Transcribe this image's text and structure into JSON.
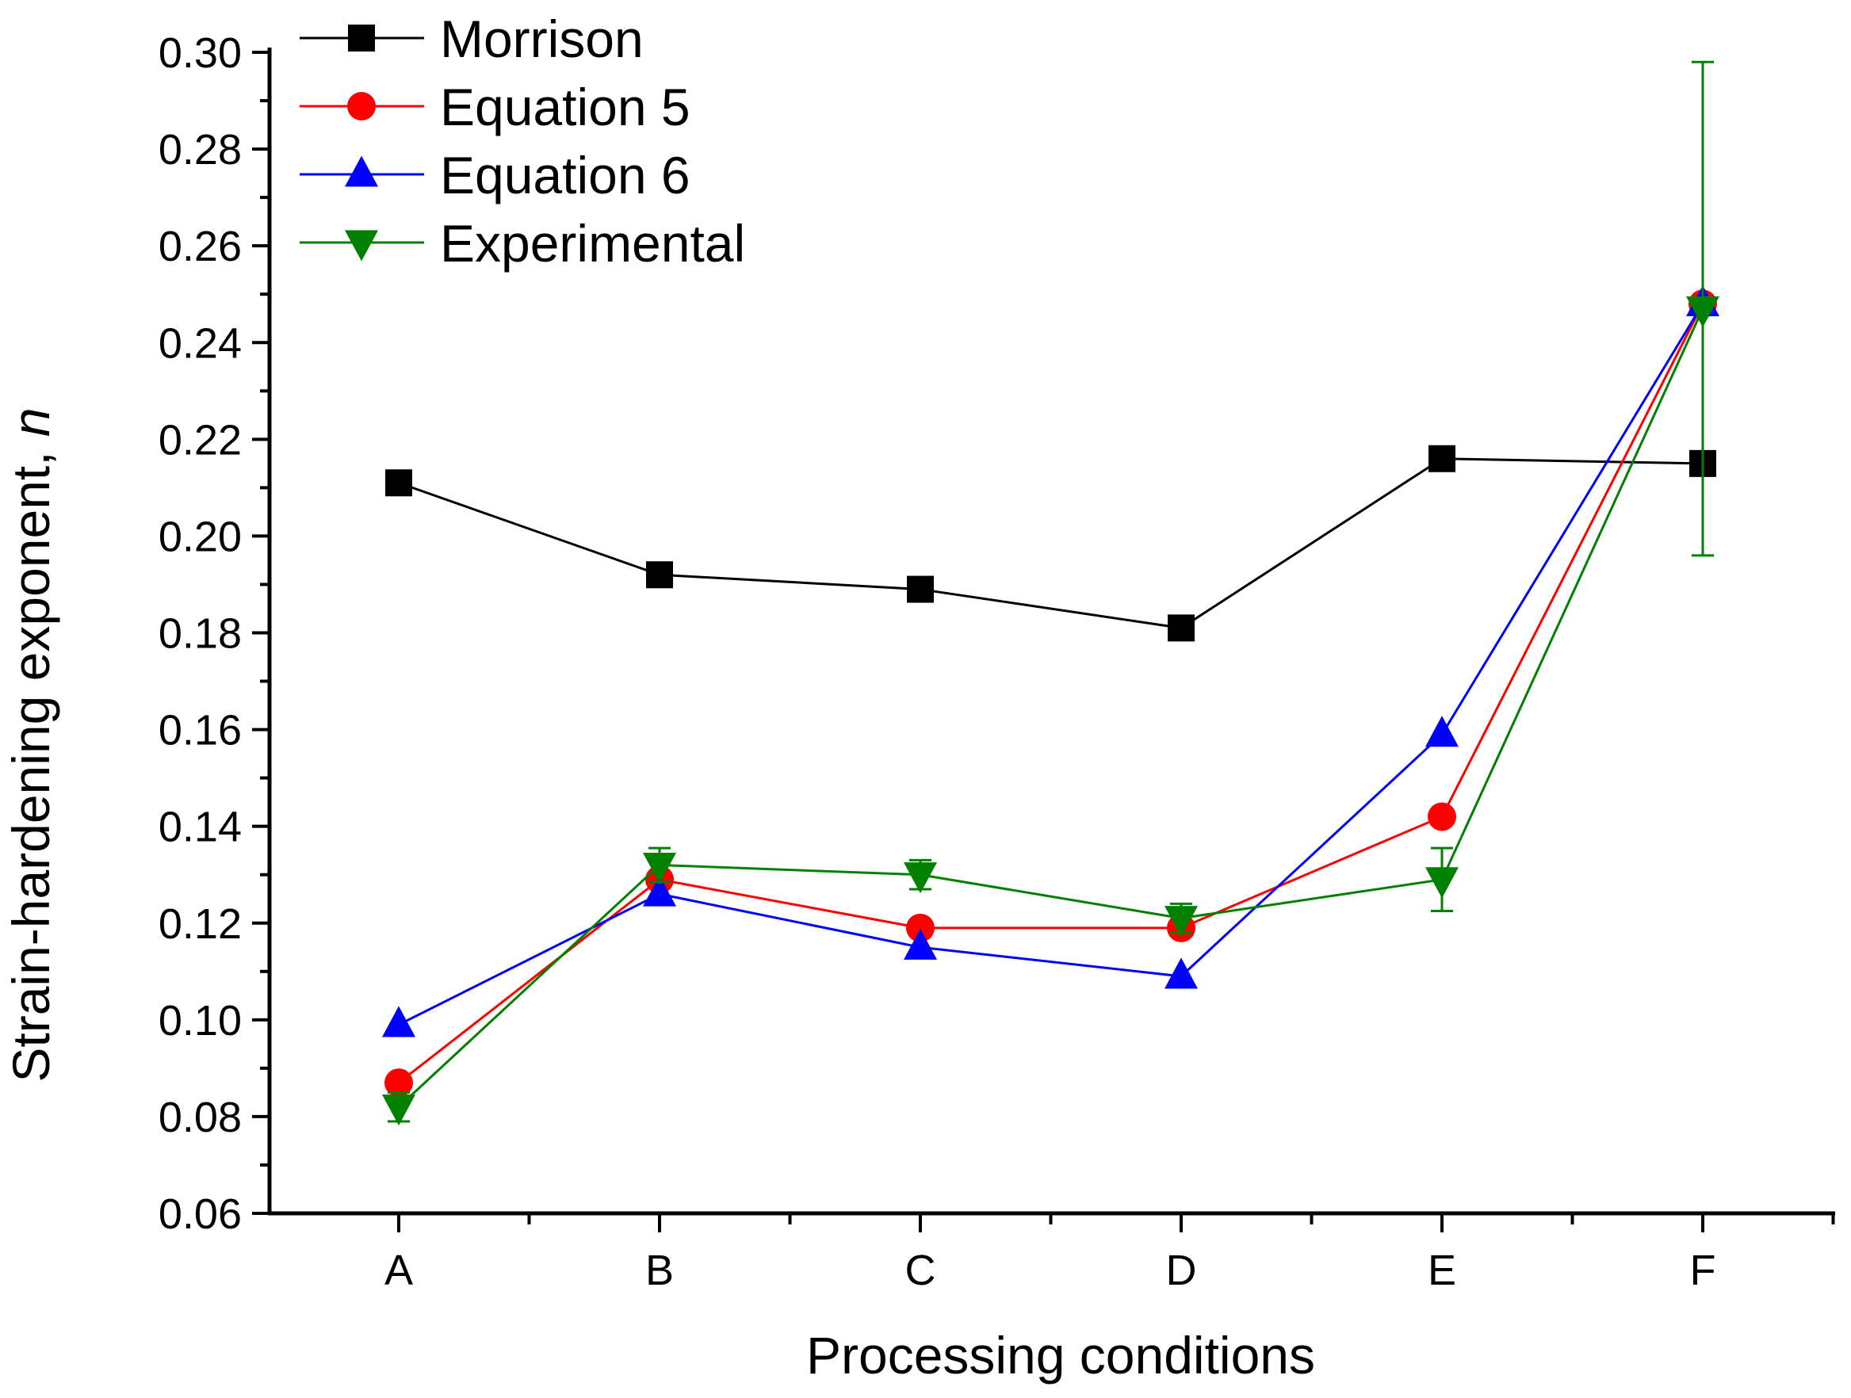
{
  "chart_data": {
    "type": "line",
    "title": "",
    "xlabel": "Processing conditions",
    "ylabel_main": "Strain-hardening exponent, ",
    "ylabel_italic": "n",
    "categories": [
      "A",
      "B",
      "C",
      "D",
      "E",
      "F"
    ],
    "ylim": [
      0.06,
      0.3
    ],
    "yticks": [
      "0.06",
      "0.08",
      "0.10",
      "0.12",
      "0.14",
      "0.16",
      "0.18",
      "0.20",
      "0.22",
      "0.24",
      "0.26",
      "0.28",
      "0.30"
    ],
    "legend_position": "top-left",
    "series": [
      {
        "name": "Morrison",
        "color": "#000000",
        "marker": "square",
        "values": [
          0.211,
          0.192,
          0.189,
          0.181,
          0.216,
          0.215
        ]
      },
      {
        "name": "Equation 5",
        "color": "#ff0000",
        "marker": "circle",
        "values": [
          0.087,
          0.129,
          0.119,
          0.119,
          0.142,
          0.248
        ]
      },
      {
        "name": "Equation 6",
        "color": "#0000ff",
        "marker": "triangle-up",
        "values": [
          0.099,
          0.126,
          0.115,
          0.109,
          0.159,
          0.248
        ]
      },
      {
        "name": "Experimental",
        "color": "#008000",
        "marker": "triangle-down",
        "values": [
          0.082,
          0.132,
          0.13,
          0.121,
          0.129,
          0.247
        ],
        "errors": [
          0.003,
          0.0035,
          0.003,
          0.003,
          0.0065,
          0.051
        ]
      }
    ]
  }
}
